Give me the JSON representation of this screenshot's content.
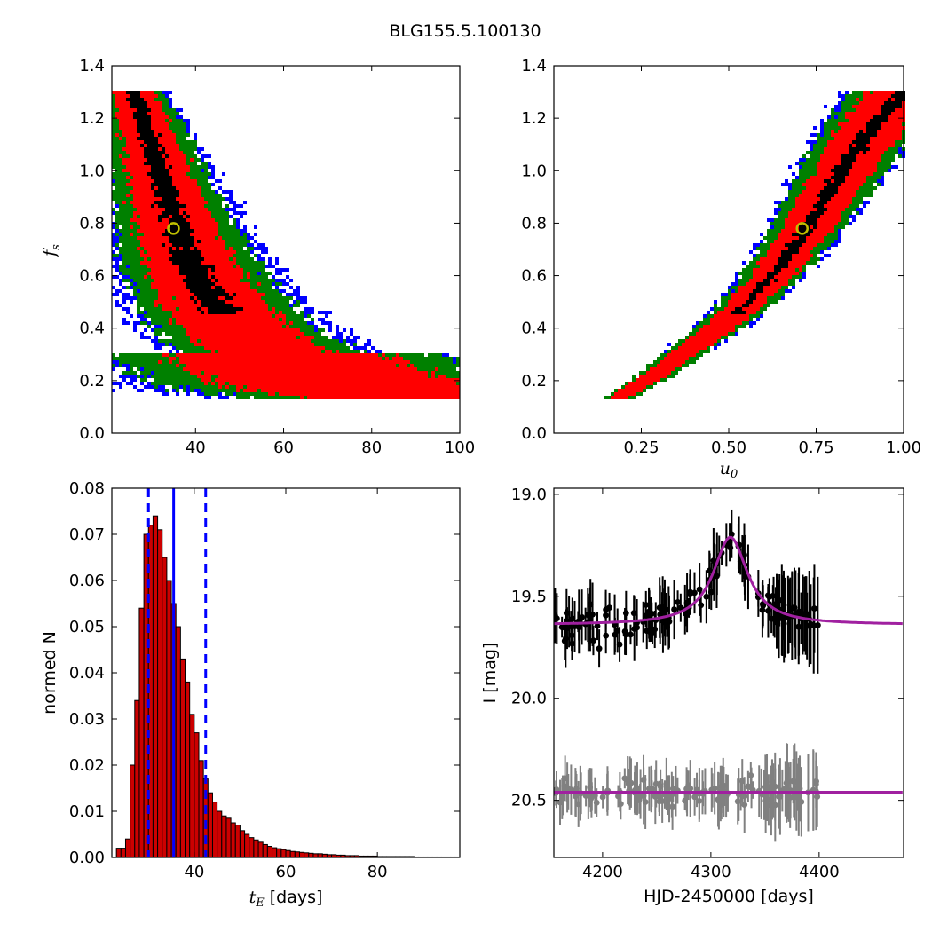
{
  "title": "BLG155.5.100130",
  "colors": {
    "conf1": "#000000",
    "conf2": "#ff0000",
    "conf3": "#008000",
    "conf4": "#0000ff",
    "best_fit_marker": "#bfbf00",
    "hist_bar": "#cc0000",
    "hist_lines": "#0000ff",
    "data_primary": "#000000",
    "data_secondary": "#808080",
    "model": "#a020a0"
  },
  "chart_data": [
    {
      "id": "fs_vs_tE",
      "type": "heatmap",
      "xlabel": "",
      "ylabel": "f_s",
      "xlim": [
        21,
        100
      ],
      "ylim": [
        0,
        1.4
      ],
      "xticks": [
        "40",
        "60",
        "80",
        "100"
      ],
      "yticks": [
        "0.0",
        "0.2",
        "0.4",
        "0.6",
        "0.8",
        "1.0",
        "1.2",
        "1.4"
      ],
      "levels": [
        "1σ (black)",
        "2σ (red)",
        "3σ (green)",
        "4σ (blue)"
      ],
      "band": [
        [
          26,
          1.3
        ],
        [
          30,
          1.1
        ],
        [
          33,
          0.92
        ],
        [
          36,
          0.78
        ],
        [
          38,
          0.68
        ],
        [
          40,
          0.6
        ],
        [
          44,
          0.5
        ],
        [
          48,
          0.42
        ],
        [
          54,
          0.34
        ],
        [
          60,
          0.28
        ],
        [
          66,
          0.23
        ],
        [
          72,
          0.19
        ],
        [
          80,
          0.16
        ],
        [
          90,
          0.14
        ],
        [
          98,
          0.13
        ]
      ],
      "fs_range_covered": [
        0.13,
        1.3
      ],
      "best_fit": {
        "tE": 35,
        "fs": 0.78
      }
    },
    {
      "id": "fs_vs_u0",
      "type": "heatmap",
      "xlabel": "u_0",
      "ylabel": "",
      "xlim": [
        0,
        1.0
      ],
      "ylim": [
        0,
        1.4
      ],
      "xticks": [
        "0.25",
        "0.50",
        "0.75",
        "1.00"
      ],
      "yticks": [
        "0.0",
        "0.2",
        "0.4",
        "0.6",
        "0.8",
        "1.0",
        "1.2",
        "1.4"
      ],
      "levels": [
        "1σ (black)",
        "2σ (red)",
        "3σ (green)",
        "4σ (blue)"
      ],
      "band": [
        [
          0.18,
          0.13
        ],
        [
          0.3,
          0.23
        ],
        [
          0.4,
          0.33
        ],
        [
          0.5,
          0.43
        ],
        [
          0.6,
          0.56
        ],
        [
          0.7,
          0.73
        ],
        [
          0.78,
          0.9
        ],
        [
          0.85,
          1.05
        ],
        [
          0.92,
          1.18
        ],
        [
          1.0,
          1.3
        ]
      ],
      "fs_range_covered": [
        0.13,
        1.3
      ],
      "best_fit": {
        "u0": 0.71,
        "fs": 0.78
      }
    },
    {
      "id": "tE_histogram",
      "type": "bar",
      "xlabel_math": "t_E",
      "xlabel_unit": "[days]",
      "ylabel": "normed N",
      "xlim": [
        22,
        98
      ],
      "ylim": [
        0,
        0.08
      ],
      "xticks": [
        "40",
        "60",
        "80"
      ],
      "yticks": [
        "0.00",
        "0.01",
        "0.02",
        "0.03",
        "0.04",
        "0.05",
        "0.06",
        "0.07",
        "0.08"
      ],
      "bin_start": 23,
      "bin_width": 1,
      "values": [
        0.002,
        0.002,
        0.004,
        0.02,
        0.034,
        0.054,
        0.07,
        0.072,
        0.074,
        0.071,
        0.065,
        0.06,
        0.055,
        0.05,
        0.043,
        0.038,
        0.031,
        0.027,
        0.021,
        0.017,
        0.014,
        0.012,
        0.01,
        0.009,
        0.0085,
        0.0075,
        0.007,
        0.0058,
        0.005,
        0.0043,
        0.0038,
        0.0033,
        0.0028,
        0.0024,
        0.0021,
        0.0019,
        0.0017,
        0.0015,
        0.0013,
        0.0012,
        0.0011,
        0.001,
        0.0009,
        0.0008,
        0.0008,
        0.0007,
        0.0006,
        0.0006,
        0.0005,
        0.0005,
        0.0004,
        0.0004,
        0.0004,
        0.0003,
        0.0003,
        0.0003,
        0.0003,
        0.0002,
        0.0002,
        0.0002,
        0.0002,
        0.0002,
        0.0002,
        0.0002,
        0.0002,
        0.0001,
        0.0001,
        0.0001,
        0.0001,
        0.0001,
        0.0001,
        0.0001,
        0.0001,
        0.0001,
        0.0001
      ],
      "median": 35.5,
      "interval": [
        30.0,
        42.5
      ]
    },
    {
      "id": "light_curve",
      "type": "scatter",
      "xlabel": "HJD-2450000 [days]",
      "ylabel": "I [mag]",
      "xlim": [
        4155,
        4478
      ],
      "ylim": [
        20.78,
        18.97
      ],
      "xticks": [
        "4200",
        "4300",
        "4400"
      ],
      "yticks": [
        "19.0",
        "19.5",
        "20.0",
        "20.5"
      ],
      "model_primary": {
        "baseline": 19.64,
        "peak_mag": 19.21,
        "t0": 4318,
        "tE": 35
      },
      "model_secondary": {
        "baseline": 20.46
      },
      "data_range": [
        4155,
        4400
      ]
    }
  ]
}
